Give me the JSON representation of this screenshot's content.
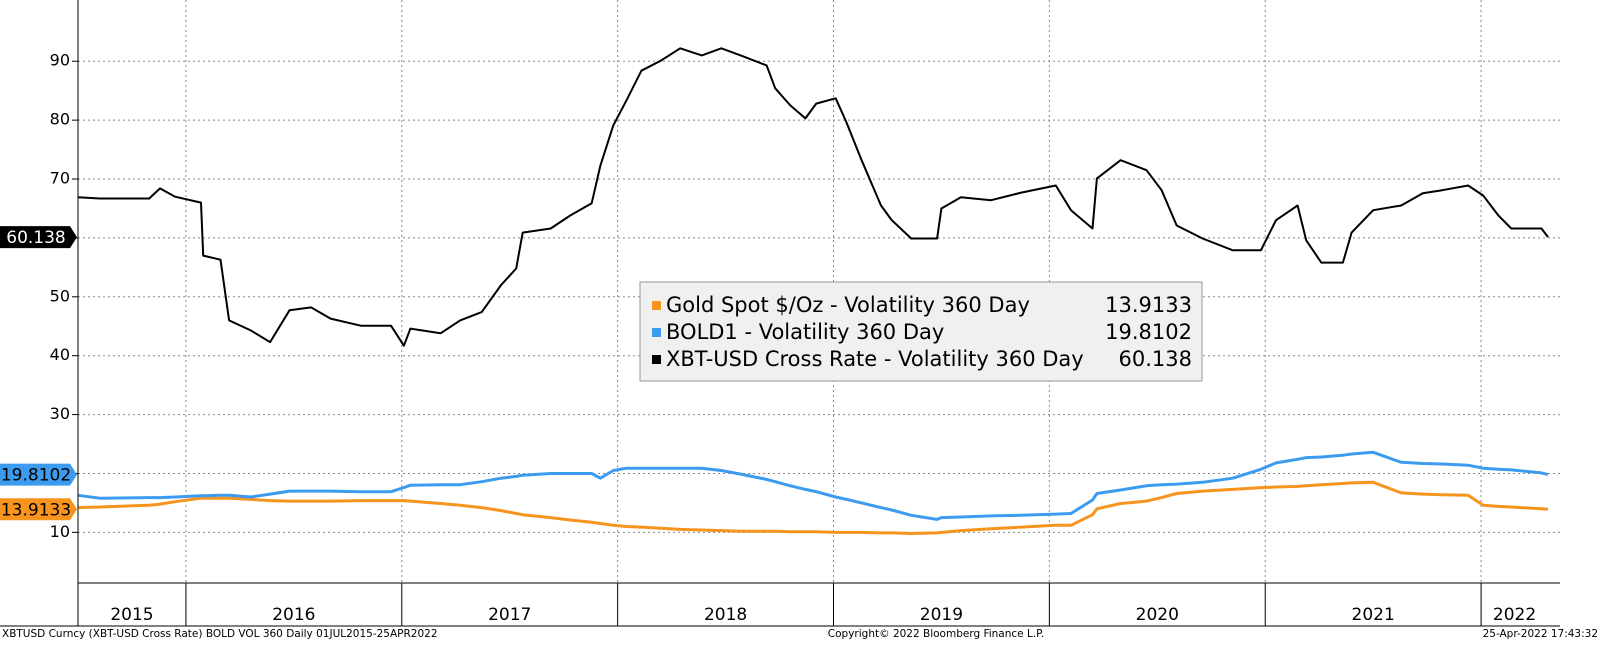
{
  "chart_data": {
    "type": "line",
    "x": [
      2015.5,
      2015.6,
      2015.83,
      2015.88,
      2015.95,
      2016.07,
      2016.08,
      2016.16,
      2016.2,
      2016.3,
      2016.39,
      2016.48,
      2016.58,
      2016.67,
      2016.81,
      2016.95,
      2017.01,
      2017.04,
      2017.18,
      2017.27,
      2017.37,
      2017.46,
      2017.53,
      2017.56,
      2017.69,
      2017.78,
      2017.88,
      2017.92,
      2017.98,
      2018.04,
      2018.11,
      2018.2,
      2018.29,
      2018.39,
      2018.48,
      2018.57,
      2018.69,
      2018.73,
      2018.8,
      2018.87,
      2018.92,
      2019.01,
      2019.06,
      2019.13,
      2019.22,
      2019.27,
      2019.36,
      2019.48,
      2019.5,
      2019.59,
      2019.73,
      2019.87,
      2020.03,
      2020.1,
      2020.2,
      2020.22,
      2020.33,
      2020.45,
      2020.52,
      2020.59,
      2020.71,
      2020.85,
      2020.98,
      2021.05,
      2021.15,
      2021.19,
      2021.26,
      2021.36,
      2021.4,
      2021.5,
      2021.63,
      2021.73,
      2021.82,
      2021.94,
      2022.01,
      2022.08,
      2022.14,
      2022.28,
      2022.31
    ],
    "series": [
      {
        "name": "Gold Spot $/Oz - Volatility 360 Day",
        "color": "#f7941d",
        "values": [
          14.2,
          14.3,
          14.6,
          14.8,
          15.2,
          15.8,
          15.8,
          15.8,
          15.8,
          15.6,
          15.4,
          15.3,
          15.3,
          15.3,
          15.4,
          15.4,
          15.4,
          15.3,
          14.9,
          14.6,
          14.2,
          13.7,
          13.2,
          13.0,
          12.5,
          12.1,
          11.7,
          11.5,
          11.2,
          11.0,
          10.9,
          10.7,
          10.5,
          10.4,
          10.3,
          10.2,
          10.2,
          10.2,
          10.1,
          10.1,
          10.1,
          10.0,
          10.0,
          10.0,
          9.9,
          9.9,
          9.8,
          9.9,
          10.0,
          10.3,
          10.6,
          10.9,
          11.2,
          11.2,
          13.0,
          14.0,
          14.9,
          15.3,
          15.9,
          16.6,
          17.0,
          17.3,
          17.6,
          17.7,
          17.8,
          17.9,
          18.1,
          18.3,
          18.4,
          18.5,
          16.7,
          16.5,
          16.4,
          16.3,
          14.6,
          14.4,
          14.3,
          14.0,
          13.9133
        ]
      },
      {
        "name": "BOLD1 - Volatility 360 Day",
        "color": "#3d9bef",
        "values": [
          16.3,
          15.8,
          15.9,
          15.9,
          16.0,
          16.2,
          16.2,
          16.3,
          16.3,
          16.0,
          16.5,
          17.0,
          17.0,
          17.0,
          16.9,
          16.9,
          17.6,
          18.0,
          18.1,
          18.1,
          18.6,
          19.2,
          19.5,
          19.7,
          20.0,
          20.0,
          20.0,
          19.2,
          20.5,
          20.9,
          20.9,
          20.9,
          20.9,
          20.9,
          20.5,
          19.9,
          19.0,
          18.6,
          17.9,
          17.3,
          16.9,
          16.0,
          15.6,
          15.0,
          14.2,
          13.8,
          12.9,
          12.2,
          12.5,
          12.6,
          12.8,
          12.9,
          13.1,
          13.2,
          15.5,
          16.6,
          17.2,
          17.9,
          18.1,
          18.2,
          18.5,
          19.2,
          20.7,
          21.8,
          22.4,
          22.7,
          22.8,
          23.1,
          23.3,
          23.6,
          21.9,
          21.7,
          21.6,
          21.4,
          20.9,
          20.7,
          20.6,
          20.1,
          19.8102
        ]
      },
      {
        "name": "XBT-USD Cross Rate - Volatility 360 Day",
        "color": "#000000",
        "values": [
          66.9,
          66.7,
          66.7,
          68.4,
          67.0,
          66.0,
          57.0,
          56.3,
          46.0,
          44.3,
          42.3,
          47.7,
          48.2,
          46.3,
          45.1,
          45.1,
          41.7,
          44.6,
          43.8,
          46.0,
          47.4,
          52.0,
          54.8,
          60.9,
          61.6,
          63.8,
          65.9,
          72.3,
          79.1,
          83.3,
          88.4,
          90.1,
          92.2,
          91.0,
          92.2,
          91.0,
          89.3,
          85.4,
          82.5,
          80.3,
          82.8,
          83.7,
          79.6,
          73.2,
          65.5,
          63.0,
          59.9,
          59.9,
          65.0,
          66.9,
          66.4,
          67.7,
          68.9,
          64.7,
          61.6,
          70.1,
          73.2,
          71.5,
          68.1,
          62.1,
          59.9,
          57.9,
          57.9,
          63.0,
          65.5,
          59.6,
          55.8,
          55.8,
          60.9,
          64.7,
          65.5,
          67.6,
          68.1,
          68.9,
          67.2,
          63.8,
          61.6,
          61.6,
          60.138
        ]
      }
    ],
    "xlim": [
      2015.5,
      2022.31
    ],
    "xticks": [
      2015,
      2016,
      2017,
      2018,
      2019,
      2020,
      2021,
      2022
    ],
    "ylim": [
      1.4,
      100.4
    ],
    "yticks": [
      10,
      20,
      30,
      40,
      50,
      60,
      70,
      80,
      90
    ],
    "grid": true,
    "footer_left": "XBTUSD Curncy (XBT-USD Cross Rate) BOLD VOL 360  Daily 01JUL2015-25APR2022",
    "footer_center": "Copyright© 2022 Bloomberg Finance L.P.",
    "footer_right": "25-Apr-2022 17:43:32"
  }
}
